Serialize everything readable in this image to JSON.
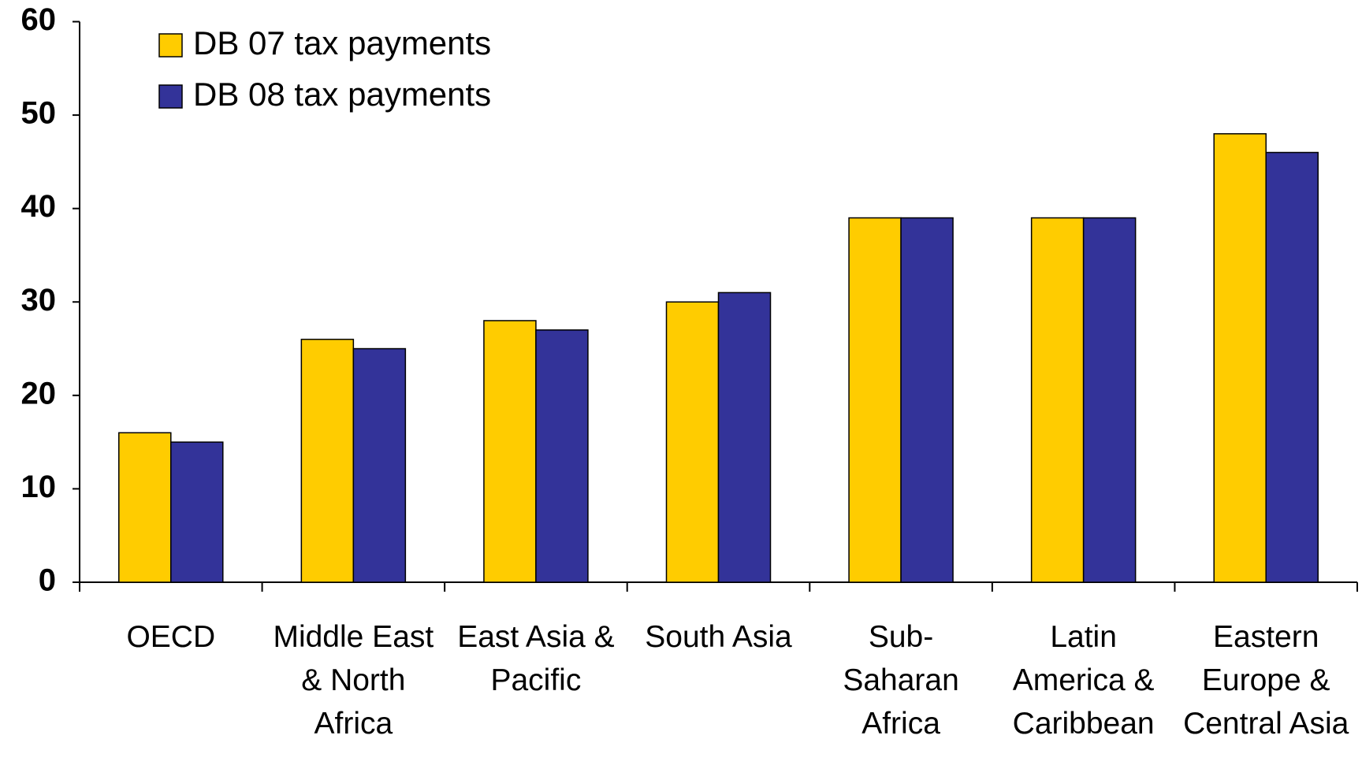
{
  "chart_data": {
    "type": "bar",
    "categories": [
      "OECD",
      "Middle East & North Africa",
      "East Asia & Pacific",
      "South Asia",
      "Sub-Saharan Africa",
      "Latin America & Caribbean",
      "Eastern Europe & Central Asia"
    ],
    "series": [
      {
        "name": "DB 07 tax payments",
        "color": "#ffcc00",
        "values": [
          16,
          26,
          28,
          30,
          39,
          39,
          48
        ]
      },
      {
        "name": "DB 08 tax payments",
        "color": "#333399",
        "values": [
          15,
          25,
          27,
          31,
          39,
          39,
          46
        ]
      }
    ],
    "ylim": [
      0,
      60
    ],
    "yticks": [
      0,
      10,
      20,
      30,
      40,
      50,
      60
    ],
    "legend": "top-left"
  }
}
